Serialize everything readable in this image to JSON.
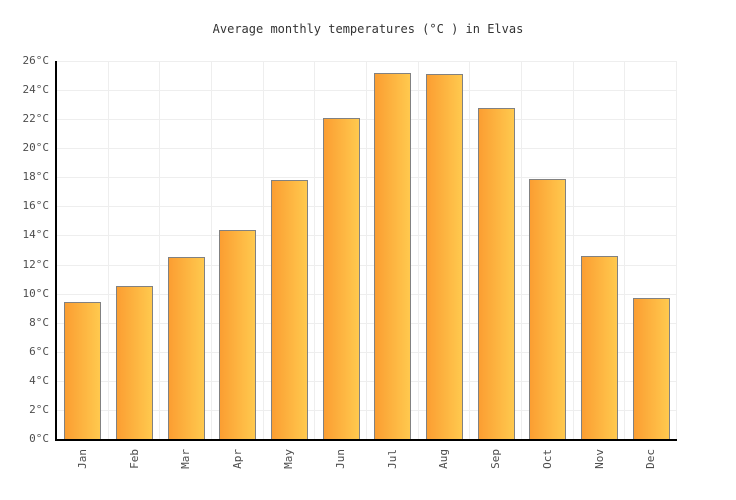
{
  "chart_data": {
    "type": "bar",
    "title": "Average monthly temperatures (°C ) in Elvas",
    "categories": [
      "Jan",
      "Feb",
      "Mar",
      "Apr",
      "May",
      "Jun",
      "Jul",
      "Aug",
      "Sep",
      "Oct",
      "Nov",
      "Dec"
    ],
    "values": [
      9.4,
      10.5,
      12.5,
      14.4,
      17.8,
      22.1,
      25.2,
      25.1,
      22.8,
      17.9,
      12.6,
      9.7
    ],
    "xlabel": "",
    "ylabel": "",
    "ylim": [
      0,
      26
    ],
    "y_tick_step": 2,
    "y_tick_suffix": "°C",
    "grid": true,
    "legend": false,
    "x_tick_rotation": -90
  },
  "colors": {
    "background": "#FFFFFF",
    "bar_gradient_left": "#FB9E32",
    "bar_gradient_right": "#FFC94E",
    "bar_border": "#818181",
    "grid": "#EEEEEE",
    "axis": "#000000",
    "title_text": "#333333",
    "tick_text": "#4D4D4D"
  }
}
